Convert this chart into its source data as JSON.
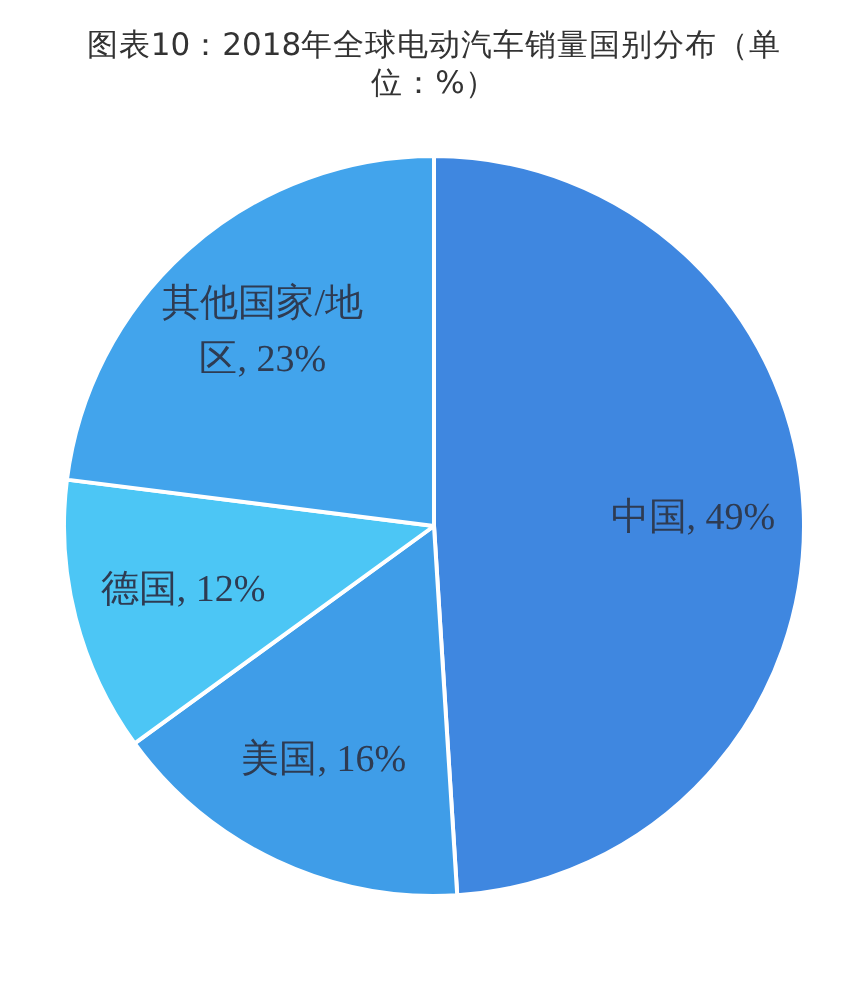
{
  "chart_data": {
    "type": "pie",
    "title": "图表10：2018年全球电动汽车销量国别分布（单位：%）",
    "categories": [
      "中国",
      "美国",
      "德国",
      "其他国家/地区"
    ],
    "values": [
      49,
      16,
      12,
      23
    ],
    "value_labels": [
      "49%",
      "16%",
      "12%",
      "23%"
    ],
    "colors": [
      "#3f87e0",
      "#3f9de8",
      "#4cc6f5",
      "#42a4ec"
    ]
  }
}
